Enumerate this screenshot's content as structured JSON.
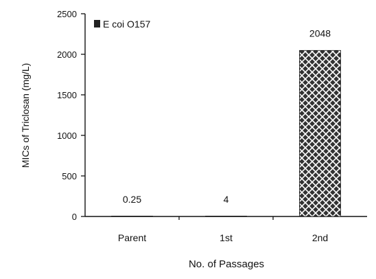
{
  "chart_data": {
    "type": "bar",
    "categories": [
      "Parent",
      "1st",
      "2nd"
    ],
    "series": [
      {
        "name": "E coi O157",
        "values": [
          0.25,
          4,
          2048
        ],
        "data_labels": [
          "0.25",
          "4",
          "2048"
        ]
      }
    ],
    "xlabel": "No. of Passages",
    "ylabel": "MICs of Triclosan (mg/L)",
    "ylim": [
      0,
      2500
    ],
    "yticks": [
      0,
      500,
      1000,
      1500,
      2000,
      2500
    ],
    "ytick_labels": [
      "0",
      "500",
      "1000",
      "1500",
      "2000",
      "2500"
    ],
    "grid": false,
    "legend_position": "top-left",
    "bar_fill": "crosshatch",
    "colors": {
      "bar_fill": "#333333",
      "hatch_line": "#ffffff",
      "axis": "#111111",
      "text": "#111111"
    }
  }
}
